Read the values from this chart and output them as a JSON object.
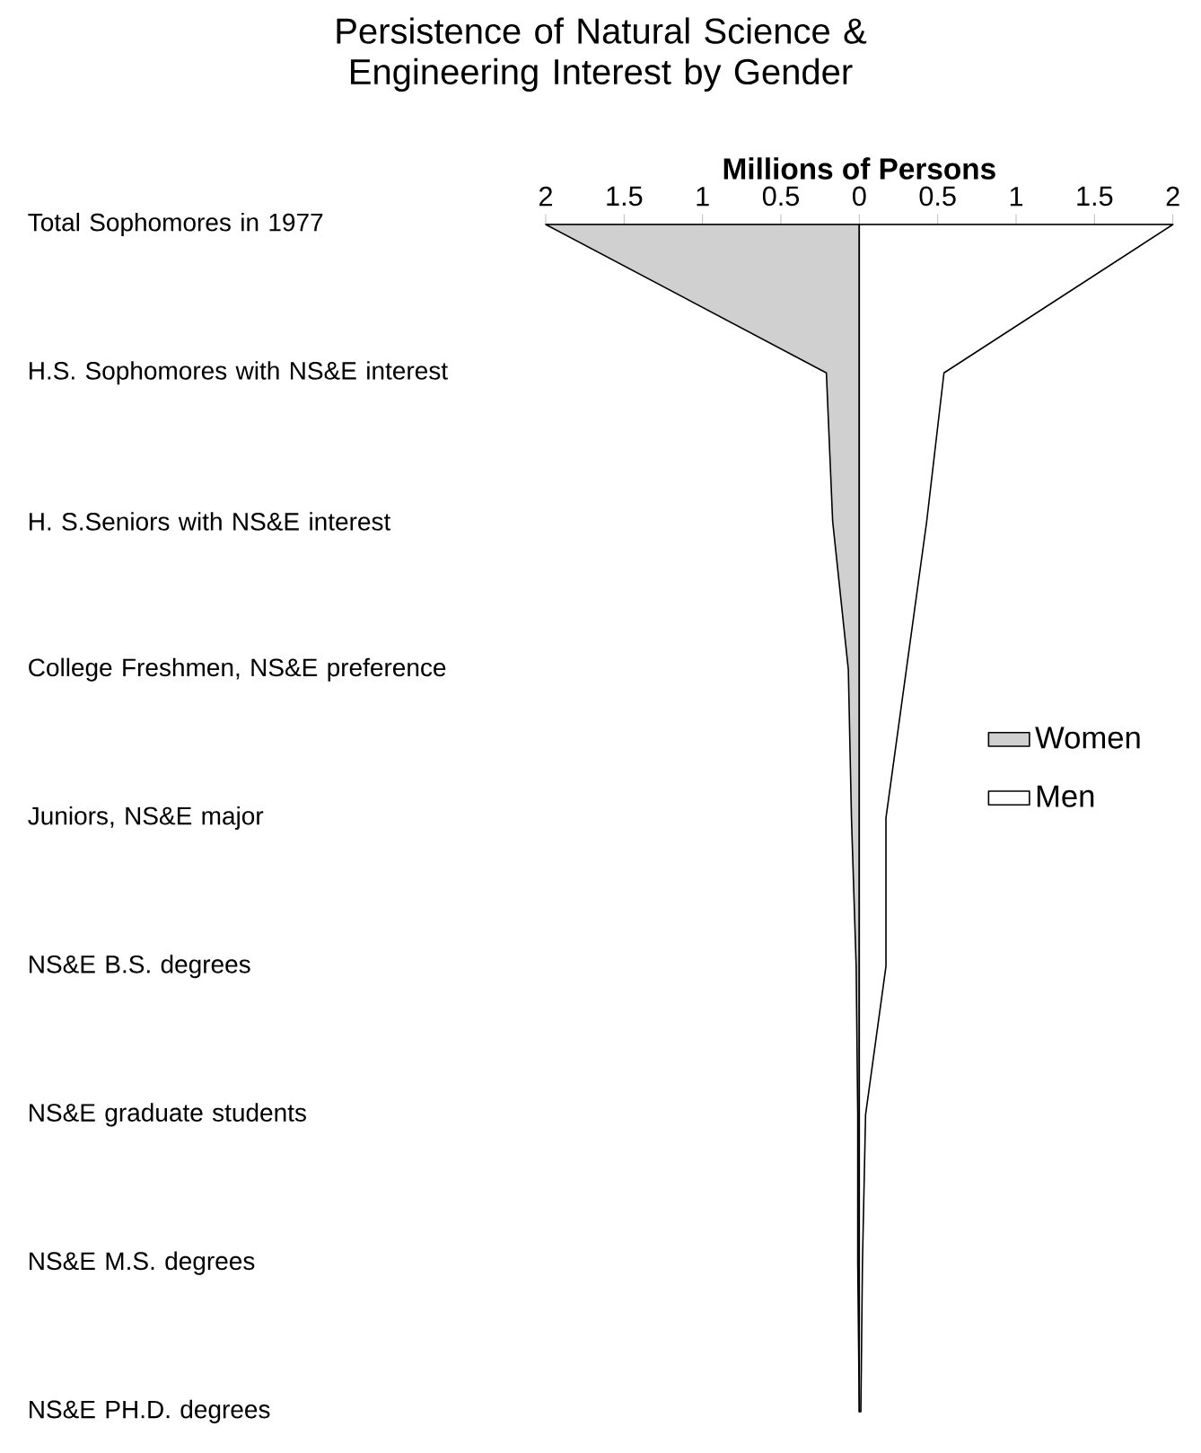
{
  "chart_data": {
    "type": "area",
    "orientation": "horizontal",
    "title": "Persistence of Natural Science & Engineering Interest by Gender",
    "xlabel": "Millions of Persons",
    "categories": [
      "Total Sophomores in 1977",
      "H.S. Sophomores with NS&E interest",
      "H. S.Seniors with NS&E interest",
      "College Freshmen, NS&E preference",
      "Juniors, NS&E major",
      "NS&E B.S. degrees",
      "NS&E graduate students",
      "NS&E M.S. degrees",
      "NS&E PH.D. degrees"
    ],
    "series": [
      {
        "name": "Women",
        "color": "#d0d0d0",
        "values": [
          -2,
          -0.21,
          -0.17,
          -0.07,
          -0.05,
          -0.02,
          -0.01,
          -0.01,
          0
        ]
      },
      {
        "name": "Men",
        "color": "#ffffff",
        "values": [
          2,
          0.54,
          0.43,
          0.3,
          0.17,
          0.17,
          0.04,
          0.02,
          0.01
        ]
      }
    ],
    "xlim": [
      -2,
      2
    ],
    "xticks": [
      {
        "value": -2,
        "label": "2"
      },
      {
        "value": -1.5,
        "label": "1.5"
      },
      {
        "value": -1,
        "label": "1"
      },
      {
        "value": -0.5,
        "label": "0.5"
      },
      0,
      0.5,
      1,
      1.5,
      2
    ],
    "legend": "right"
  }
}
